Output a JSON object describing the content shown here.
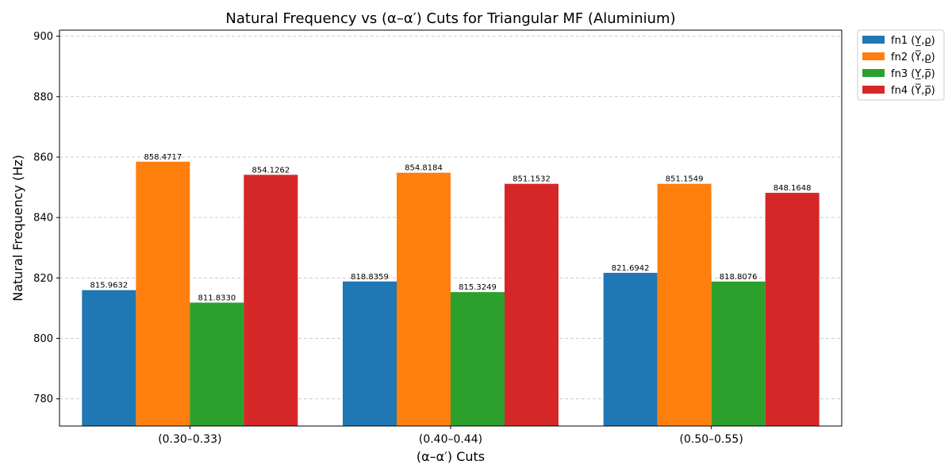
{
  "chart_data": {
    "type": "bar",
    "title": "Natural Frequency vs (α–α′) Cuts for Triangular MF (Aluminium)",
    "xlabel": "(α–α′) Cuts",
    "ylabel": "Natural Frequency (Hz)",
    "ylim": [
      771,
      902
    ],
    "yticks": [
      780,
      800,
      820,
      840,
      860,
      880,
      900
    ],
    "grid": "y-dashed",
    "legend_position": "outside-top-right",
    "categories": [
      "(0.30–0.33)",
      "(0.40–0.44)",
      "(0.50–0.55)"
    ],
    "series": [
      {
        "name": "fn1 (Y̲,ρ̲)",
        "color": "#1f77b4",
        "values": [
          815.9632,
          818.8359,
          821.6942
        ],
        "labels": [
          "815.9632",
          "818.8359",
          "821.6942"
        ]
      },
      {
        "name": "fn2 (Y̅,ρ̲)",
        "color": "#ff7f0e",
        "values": [
          858.4717,
          854.8184,
          851.1549
        ],
        "labels": [
          "858.4717",
          "854.8184",
          "851.1549"
        ]
      },
      {
        "name": "fn3 (Y̲,ρ̅)",
        "color": "#2ca02c",
        "values": [
          811.833,
          815.3249,
          818.8076
        ],
        "labels": [
          "811.8330",
          "815.3249",
          "818.8076"
        ]
      },
      {
        "name": "fn4 (Y̅,ρ̅)",
        "color": "#d62728",
        "values": [
          854.1262,
          851.1532,
          848.1648
        ],
        "labels": [
          "854.1262",
          "851.1532",
          "848.1648"
        ]
      }
    ]
  }
}
